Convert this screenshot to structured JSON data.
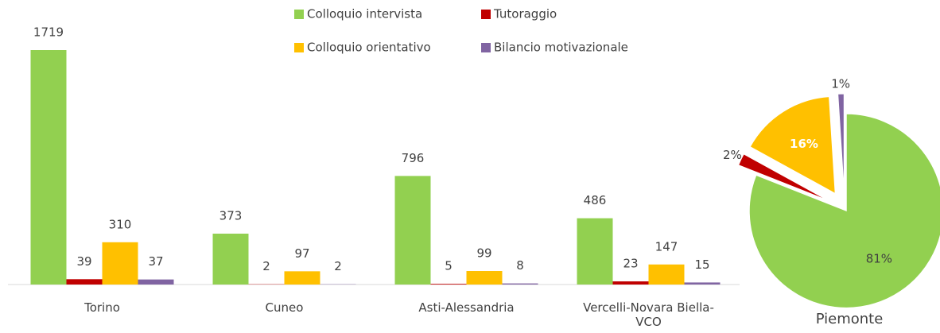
{
  "chart_data": [
    {
      "type": "bar",
      "categories": [
        "Torino",
        "Cuneo",
        "Asti-Alessandria",
        "Vercelli-Novara Biella-VCO"
      ],
      "series": [
        {
          "name": "Colloquio intervista",
          "color": "#92d050",
          "values": [
            1719,
            373,
            796,
            486
          ]
        },
        {
          "name": "Tutoraggio",
          "color": "#c00000",
          "values": [
            39,
            2,
            5,
            23
          ]
        },
        {
          "name": "Colloquio orientativo",
          "color": "#ffc000",
          "values": [
            310,
            97,
            99,
            147
          ]
        },
        {
          "name": "Bilancio motivazionale",
          "color": "#8064a2",
          "values": [
            37,
            2,
            8,
            15
          ]
        }
      ],
      "legend": "top"
    },
    {
      "type": "pie",
      "title": "Piemonte",
      "values": [
        81,
        2,
        16,
        1
      ],
      "value_labels": [
        "81%",
        "2%",
        "16%",
        "1%"
      ],
      "colors": [
        "#92d050",
        "#c00000",
        "#ffc000",
        "#8064a2"
      ]
    }
  ]
}
